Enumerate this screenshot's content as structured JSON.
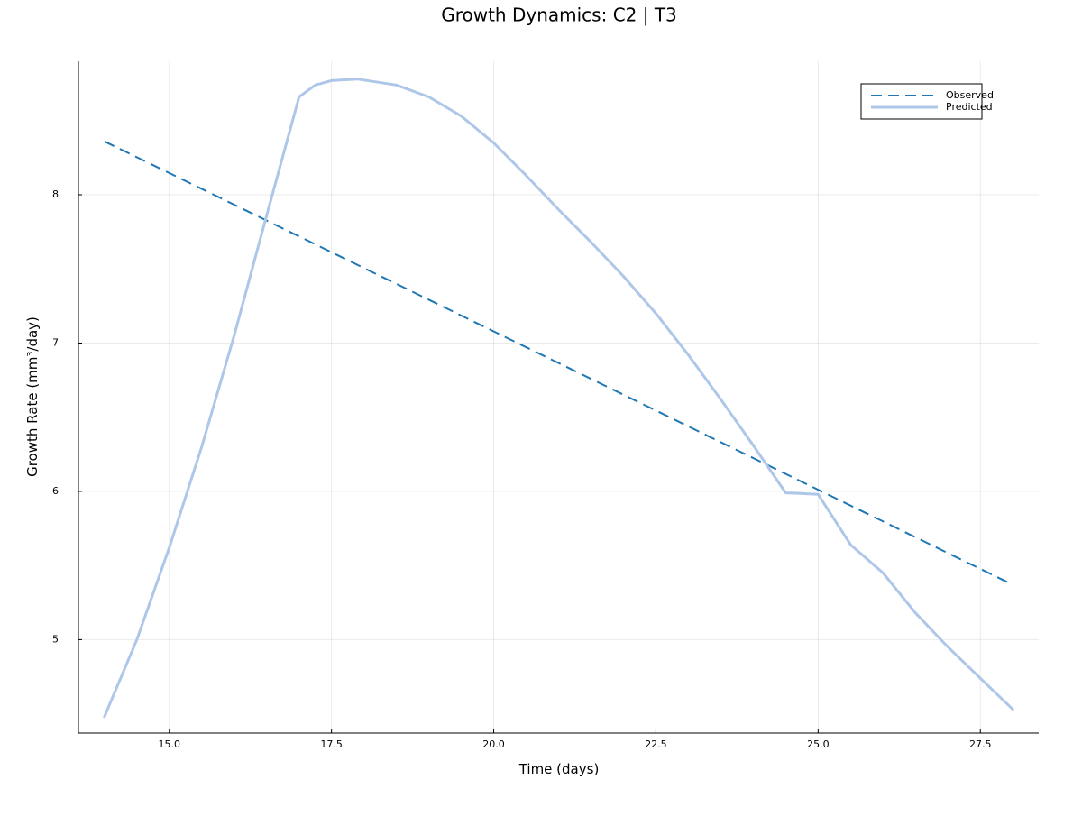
{
  "chart_data": {
    "type": "line",
    "title": "Growth Dynamics: C2 | T3",
    "xlabel": "Time (days)",
    "ylabel": "Growth Rate (mm³/day)",
    "xlim": [
      13.6,
      28.4
    ],
    "ylim": [
      4.37,
      8.9
    ],
    "xticks": [
      15.0,
      17.5,
      20.0,
      22.5,
      25.0,
      27.5
    ],
    "xtick_labels": [
      "15.0",
      "17.5",
      "20.0",
      "22.5",
      "25.0",
      "27.5"
    ],
    "yticks": [
      5,
      6,
      7,
      8
    ],
    "ytick_labels": [
      "5",
      "6",
      "7",
      "8"
    ],
    "grid": true,
    "legend_position": "top-right",
    "series": [
      {
        "name": "Observed",
        "style": "dashed",
        "color": "#1f77b4",
        "x": [
          14.0,
          28.0
        ],
        "values": [
          8.36,
          5.37
        ]
      },
      {
        "name": "Predicted",
        "style": "solid",
        "color": "#aec7e8",
        "x": [
          14.0,
          14.5,
          15.0,
          15.5,
          16.0,
          16.5,
          17.0,
          17.25,
          17.5,
          17.9,
          18.5,
          19.0,
          19.5,
          20.0,
          20.5,
          21.0,
          21.5,
          22.0,
          22.5,
          23.0,
          23.5,
          24.0,
          24.5,
          25.0,
          25.5,
          26.0,
          26.5,
          27.0,
          27.5,
          28.0
        ],
        "values": [
          4.48,
          5.0,
          5.62,
          6.3,
          7.05,
          7.86,
          8.66,
          8.74,
          8.77,
          8.78,
          8.74,
          8.66,
          8.53,
          8.35,
          8.13,
          7.9,
          7.68,
          7.45,
          7.2,
          6.92,
          6.62,
          6.31,
          5.99,
          5.98,
          5.64,
          5.45,
          5.18,
          4.95,
          4.74,
          4.53
        ]
      }
    ]
  }
}
